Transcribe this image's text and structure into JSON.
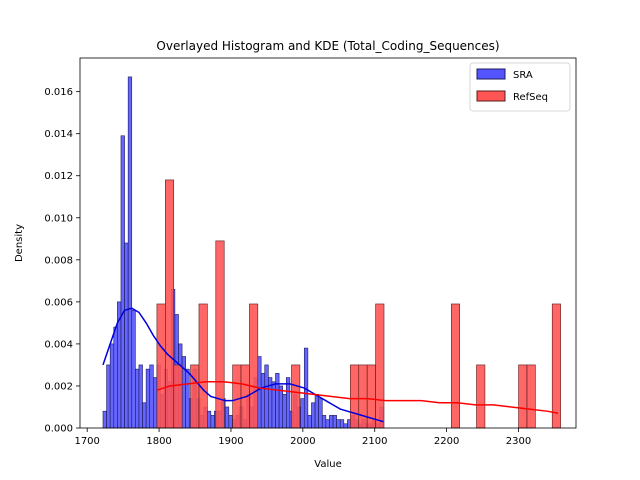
{
  "chart_data": {
    "type": "histogram",
    "title": "Overlayed Histogram and KDE (Total_Coding_Sequences)",
    "xlabel": "Value",
    "ylabel": "Density",
    "xlim": [
      1690,
      2380
    ],
    "ylim": [
      0,
      0.0176
    ],
    "x_ticks": [
      1700,
      1800,
      1900,
      2000,
      2100,
      2200,
      2300
    ],
    "y_ticks": [
      0.0,
      0.002,
      0.004,
      0.006,
      0.008,
      0.01,
      0.012,
      0.014,
      0.016
    ],
    "y_tick_labels": [
      "0.000",
      "0.002",
      "0.004",
      "0.006",
      "0.008",
      "0.010",
      "0.012",
      "0.014",
      "0.016"
    ],
    "legend_position": "top-right",
    "series": [
      {
        "name": "SRA",
        "fill": "#5555ff",
        "edge": "#1a1a5a",
        "kde_color": "#0000dd",
        "bin_width": 5.0,
        "bins": [
          [
            1722,
            0.0008
          ],
          [
            1727,
            0.003
          ],
          [
            1732,
            0.004
          ],
          [
            1737,
            0.0048
          ],
          [
            1742,
            0.006
          ],
          [
            1747,
            0.0139
          ],
          [
            1752,
            0.0088
          ],
          [
            1757,
            0.0167
          ],
          [
            1762,
            0.0056
          ],
          [
            1767,
            0.0028
          ],
          [
            1772,
            0.003
          ],
          [
            1777,
            0.0012
          ],
          [
            1782,
            0.0028
          ],
          [
            1787,
            0.003
          ],
          [
            1792,
            0.0024
          ],
          [
            1797,
            0.003
          ],
          [
            1802,
            0.0016
          ],
          [
            1807,
            0.0028
          ],
          [
            1812,
            0.0022
          ],
          [
            1817,
            0.0066
          ],
          [
            1822,
            0.0054
          ],
          [
            1827,
            0.004
          ],
          [
            1832,
            0.0034
          ],
          [
            1837,
            0.0028
          ],
          [
            1842,
            0.0014
          ],
          [
            1847,
            0.0028
          ],
          [
            1852,
            0.0014
          ],
          [
            1857,
            0.0006
          ],
          [
            1862,
            0.001
          ],
          [
            1867,
            0.0008
          ],
          [
            1872,
            0.0006
          ],
          [
            1877,
            0.0008
          ],
          [
            1882,
            0.0008
          ],
          [
            1887,
            0.0014
          ],
          [
            1892,
            0.001
          ],
          [
            1897,
            0.0006
          ],
          [
            1902,
            0.0004
          ],
          [
            1907,
            0.0006
          ],
          [
            1912,
            0.001
          ],
          [
            1917,
            0.0004
          ],
          [
            1922,
            0.0016
          ],
          [
            1927,
            0.001
          ],
          [
            1932,
            0.0024
          ],
          [
            1937,
            0.0034
          ],
          [
            1942,
            0.0026
          ],
          [
            1947,
            0.003
          ],
          [
            1952,
            0.0024
          ],
          [
            1957,
            0.0022
          ],
          [
            1962,
            0.0026
          ],
          [
            1967,
            0.002
          ],
          [
            1972,
            0.0016
          ],
          [
            1977,
            0.0024
          ],
          [
            1982,
            0.0008
          ],
          [
            1987,
            0.0016
          ],
          [
            1992,
            0.001
          ],
          [
            1997,
            0.0014
          ],
          [
            2002,
            0.0038
          ],
          [
            2007,
            0.0006
          ],
          [
            2012,
            0.0012
          ],
          [
            2017,
            0.0016
          ],
          [
            2022,
            0.0014
          ],
          [
            2027,
            0.0006
          ],
          [
            2032,
            0.0004
          ],
          [
            2037,
            0.0006
          ],
          [
            2042,
            0.0006
          ],
          [
            2047,
            0.0004
          ],
          [
            2052,
            0.0004
          ],
          [
            2057,
            0.0002
          ],
          [
            2062,
            0.0004
          ],
          [
            2067,
            0.0006
          ],
          [
            2072,
            0.0004
          ],
          [
            2077,
            0.0002
          ],
          [
            2082,
            0.0004
          ],
          [
            2087,
            0.0002
          ],
          [
            2092,
            0.0002
          ],
          [
            2097,
            0.0004
          ],
          [
            2102,
            0.0002
          ],
          [
            2107,
            0.001
          ]
        ],
        "kde_x": [
          1722,
          1732,
          1742,
          1752,
          1762,
          1772,
          1782,
          1792,
          1802,
          1812,
          1822,
          1832,
          1842,
          1852,
          1862,
          1872,
          1882,
          1892,
          1902,
          1912,
          1922,
          1932,
          1942,
          1952,
          1962,
          1972,
          1982,
          1992,
          2002,
          2012,
          2022,
          2032,
          2042,
          2052,
          2062,
          2072,
          2082,
          2092,
          2102,
          2112
        ],
        "kde_y": [
          0.003,
          0.004,
          0.005,
          0.0056,
          0.0057,
          0.0055,
          0.005,
          0.0044,
          0.0039,
          0.0035,
          0.0032,
          0.0029,
          0.0026,
          0.0022,
          0.0018,
          0.0015,
          0.0014,
          0.0013,
          0.0013,
          0.0014,
          0.0015,
          0.0017,
          0.0019,
          0.002,
          0.0021,
          0.0021,
          0.0021,
          0.002,
          0.0019,
          0.0017,
          0.0015,
          0.0013,
          0.0011,
          0.0009,
          0.0008,
          0.0007,
          0.0006,
          0.0005,
          0.0004,
          0.0003
        ]
      },
      {
        "name": "RefSeq",
        "fill": "#ff5555",
        "edge": "#5a1a1a",
        "kde_color": "#ff0000",
        "bin_width": 11.7,
        "bins": [
          [
            1797,
            0.0059
          ],
          [
            1808.7,
            0.0118
          ],
          [
            1820.4,
            0.003
          ],
          [
            1832.1,
            0.0
          ],
          [
            1843.8,
            0.003
          ],
          [
            1855.5,
            0.0059
          ],
          [
            1867.2,
            0.0
          ],
          [
            1878.9,
            0.0089
          ],
          [
            1890.6,
            0.0
          ],
          [
            1902.3,
            0.003
          ],
          [
            1914.0,
            0.003
          ],
          [
            1925.7,
            0.0059
          ],
          [
            1937.4,
            0.0
          ],
          [
            1949.1,
            0.0
          ],
          [
            1960.8,
            0.0
          ],
          [
            1972.5,
            0.0
          ],
          [
            1984.2,
            0.003
          ],
          [
            1995.9,
            0.0
          ],
          [
            2007.6,
            0.0
          ],
          [
            2019.3,
            0.0
          ],
          [
            2031.0,
            0.0
          ],
          [
            2042.7,
            0.0
          ],
          [
            2054.4,
            0.0
          ],
          [
            2066.1,
            0.003
          ],
          [
            2077.8,
            0.003
          ],
          [
            2089.5,
            0.003
          ],
          [
            2101.2,
            0.0059
          ],
          [
            2112.9,
            0.0
          ],
          [
            2124.6,
            0.0
          ],
          [
            2136.3,
            0.0
          ],
          [
            2148.0,
            0.0
          ],
          [
            2159.7,
            0.0
          ],
          [
            2171.4,
            0.0
          ],
          [
            2183.1,
            0.0
          ],
          [
            2194.8,
            0.0
          ],
          [
            2206.5,
            0.0059
          ],
          [
            2218.2,
            0.0
          ],
          [
            2229.9,
            0.0
          ],
          [
            2241.6,
            0.003
          ],
          [
            2253.3,
            0.0
          ],
          [
            2265.0,
            0.0
          ],
          [
            2276.7,
            0.0
          ],
          [
            2288.4,
            0.0
          ],
          [
            2300.1,
            0.003
          ],
          [
            2311.8,
            0.003
          ],
          [
            2323.5,
            0.0
          ],
          [
            2335.2,
            0.0
          ],
          [
            2346.9,
            0.0059
          ]
        ],
        "kde_x": [
          1797,
          1815,
          1840,
          1865,
          1890,
          1915,
          1940,
          1965,
          1990,
          2015,
          2040,
          2065,
          2090,
          2115,
          2140,
          2165,
          2190,
          2215,
          2240,
          2265,
          2290,
          2315,
          2340,
          2355
        ],
        "kde_y": [
          0.0018,
          0.002,
          0.0021,
          0.0022,
          0.0022,
          0.0021,
          0.0019,
          0.0018,
          0.0017,
          0.0016,
          0.0015,
          0.0014,
          0.0014,
          0.0013,
          0.0013,
          0.0013,
          0.0012,
          0.0012,
          0.0011,
          0.0011,
          0.001,
          0.0009,
          0.0008,
          0.0007
        ]
      }
    ]
  }
}
